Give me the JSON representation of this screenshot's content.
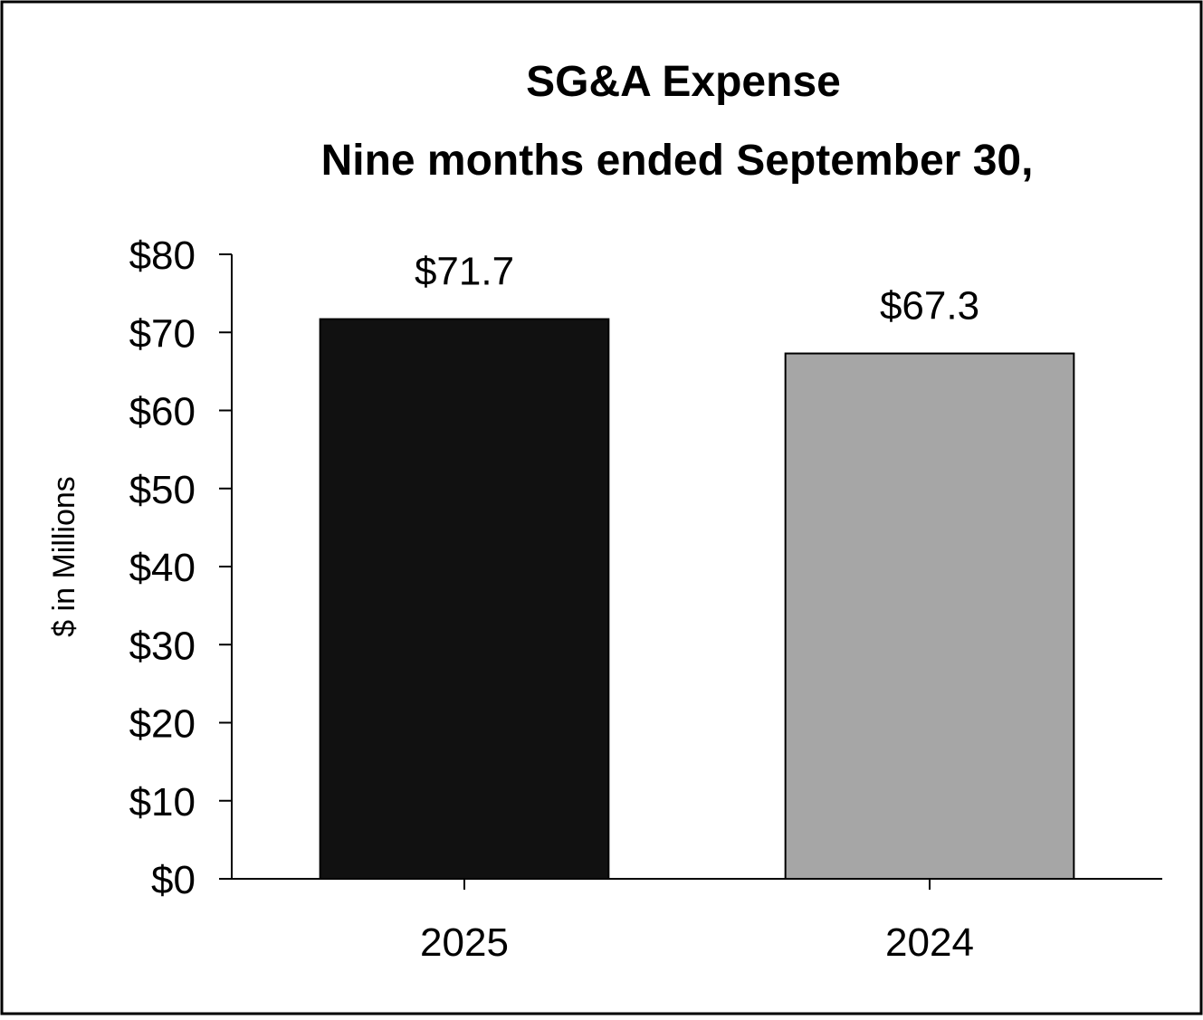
{
  "chart_data": {
    "type": "bar",
    "title": "SG&A Expense",
    "subtitle": "Nine months ended September 30,",
    "xlabel": "",
    "ylabel": "$ in Millions",
    "categories": [
      "2025",
      "2024"
    ],
    "values": [
      71.7,
      67.3
    ],
    "value_labels": [
      "$71.7",
      "$67.3"
    ],
    "bar_colors": [
      "#111111",
      "#a6a6a6"
    ],
    "ylim": [
      0,
      80
    ],
    "yticks": [
      0,
      10,
      20,
      30,
      40,
      50,
      60,
      70,
      80
    ],
    "ytick_labels": [
      "$0",
      "$10",
      "$20",
      "$30",
      "$40",
      "$50",
      "$60",
      "$70",
      "$80"
    ],
    "grid": false,
    "legend": "none"
  }
}
